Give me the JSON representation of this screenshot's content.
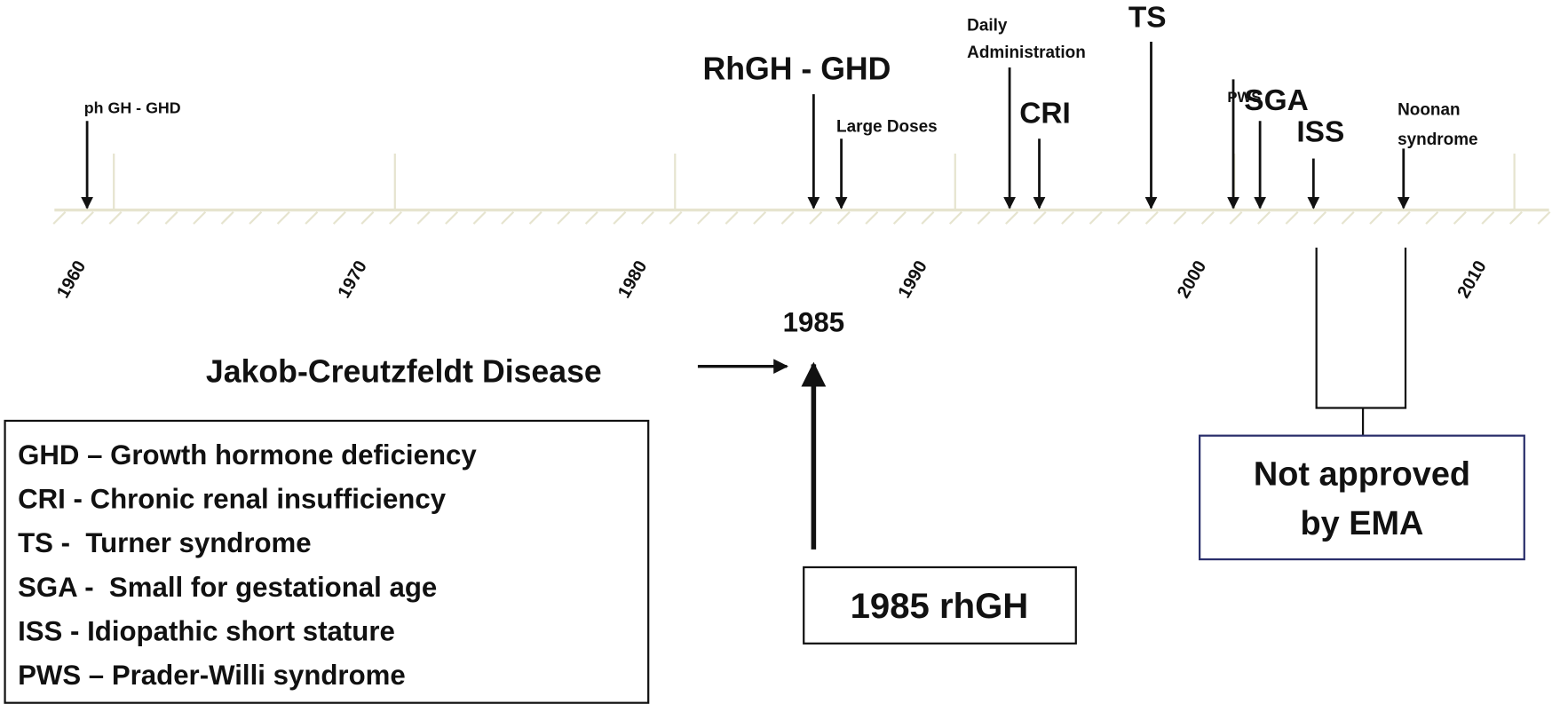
{
  "timeline": {
    "years": [
      1960,
      1970,
      1980,
      1990,
      2000,
      2010
    ],
    "events": [
      {
        "lines": [
          "ph GH - GHD"
        ]
      },
      {
        "lines": [
          "RhGH - GHD"
        ]
      },
      {
        "lines": [
          "Large Doses"
        ]
      },
      {
        "lines": [
          "Daily",
          "Administration"
        ]
      },
      {
        "lines": [
          "CRI"
        ]
      },
      {
        "lines": [
          "TS"
        ]
      },
      {
        "lines": [
          "PWS"
        ]
      },
      {
        "lines": [
          "SGA"
        ]
      },
      {
        "lines": [
          "ISS"
        ]
      },
      {
        "lines": [
          "Noonan",
          "syndrome"
        ]
      }
    ],
    "note": [
      "Not approved",
      "by EMA"
    ]
  },
  "center": {
    "year": "1985",
    "cause": "Jakob-Creutzfeldt Disease",
    "box": "1985 rhGH"
  },
  "legend": [
    "GHD – Growth hormone deficiency",
    "CRI - Chronic renal insufficiency",
    "TS -  Turner syndrome",
    "SGA -  Small for gestational age",
    "ISS - Idiopathic short stature",
    "PWS – Prader-Willi syndrome"
  ]
}
